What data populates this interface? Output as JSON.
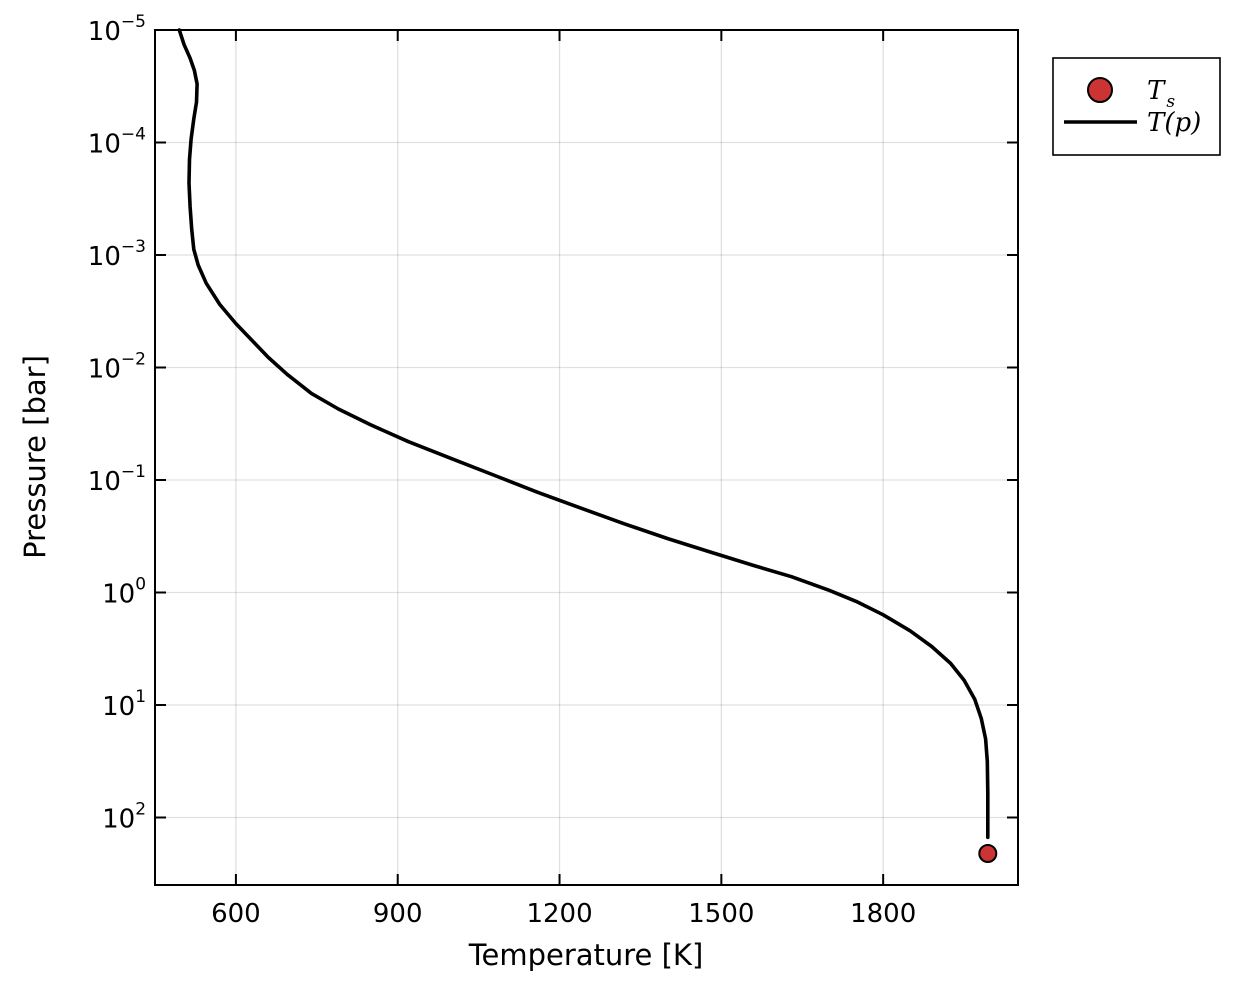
{
  "chart_data": {
    "type": "line",
    "xlabel": "Temperature [K]",
    "ylabel": "Pressure [bar]",
    "xlim": [
      450,
      2050
    ],
    "ylim_log10": [
      2.6,
      -5
    ],
    "y_log_scale": true,
    "y_inverted": true,
    "grid": true,
    "legend_position": "outside-top-right",
    "x_ticks": [
      "600",
      "900",
      "1200",
      "1500",
      "1800"
    ],
    "x_tick_values": [
      600,
      900,
      1200,
      1500,
      1800
    ],
    "y_ticks": [
      {
        "base": "10",
        "exp": "−5",
        "value": 1e-05
      },
      {
        "base": "10",
        "exp": "−4",
        "value": 0.0001
      },
      {
        "base": "10",
        "exp": "−3",
        "value": 0.001
      },
      {
        "base": "10",
        "exp": "−2",
        "value": 0.01
      },
      {
        "base": "10",
        "exp": "−1",
        "value": 0.1
      },
      {
        "base": "10",
        "exp": "0",
        "value": 1
      },
      {
        "base": "10",
        "exp": "1",
        "value": 10
      },
      {
        "base": "10",
        "exp": "2",
        "value": 100
      }
    ],
    "series": [
      {
        "name": "T(p)",
        "color": "#000000",
        "points": [
          [
            495,
            1e-05
          ],
          [
            504,
            1.35e-05
          ],
          [
            515,
            1.78e-05
          ],
          [
            523,
            2.29e-05
          ],
          [
            528,
            3.02e-05
          ],
          [
            527,
            4.37e-05
          ],
          [
            522,
            6.17e-05
          ],
          [
            517,
            9.33e-05
          ],
          [
            514,
            0.000141
          ],
          [
            513,
            0.000229
          ],
          [
            515,
            0.000372
          ],
          [
            518,
            0.000589
          ],
          [
            522,
            0.000891
          ],
          [
            530,
            0.00123
          ],
          [
            545,
            0.00178
          ],
          [
            570,
            0.00275
          ],
          [
            600,
            0.00407
          ],
          [
            630,
            0.00575
          ],
          [
            660,
            0.00813
          ],
          [
            695,
            0.0115
          ],
          [
            740,
            0.017
          ],
          [
            790,
            0.0234
          ],
          [
            850,
            0.0324
          ],
          [
            920,
            0.0457
          ],
          [
            1000,
            0.0646
          ],
          [
            1080,
            0.0912
          ],
          [
            1160,
            0.129
          ],
          [
            1240,
            0.178
          ],
          [
            1320,
            0.245
          ],
          [
            1400,
            0.331
          ],
          [
            1480,
            0.437
          ],
          [
            1560,
            0.575
          ],
          [
            1630,
            0.724
          ],
          [
            1700,
            0.955
          ],
          [
            1750,
            1.2
          ],
          [
            1800,
            1.58
          ],
          [
            1850,
            2.19
          ],
          [
            1890,
            3.02
          ],
          [
            1925,
            4.27
          ],
          [
            1950,
            6.03
          ],
          [
            1970,
            8.91
          ],
          [
            1982,
            13.2
          ],
          [
            1990,
            20.0
          ],
          [
            1993,
            31.6
          ],
          [
            1994,
            60.3
          ],
          [
            1994,
            150
          ]
        ]
      },
      {
        "name": "Ts",
        "color": "#cc3333",
        "points": [
          [
            1994,
            209
          ]
        ]
      }
    ],
    "legend": [
      {
        "label_main": "T",
        "label_sub": "s",
        "kind": "marker",
        "color": "#cc3333"
      },
      {
        "label_main": "T(p)",
        "kind": "line",
        "color": "#000000"
      }
    ]
  }
}
